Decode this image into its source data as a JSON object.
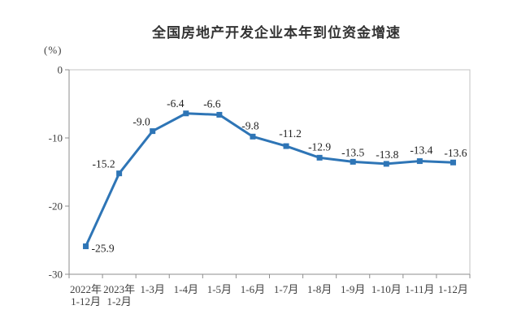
{
  "chart_data": {
    "type": "line",
    "title": "全国房地产开发企业本年到位资金增速",
    "unit_label": "(%)",
    "categories": [
      [
        "2022年",
        "1-12月"
      ],
      [
        "2023年",
        "1-2月"
      ],
      [
        "1-3月"
      ],
      [
        "1-4月"
      ],
      [
        "1-5月"
      ],
      [
        "1-6月"
      ],
      [
        "1-7月"
      ],
      [
        "1-8月"
      ],
      [
        "1-9月"
      ],
      [
        "1-10月"
      ],
      [
        "1-11月"
      ],
      [
        "1-12月"
      ]
    ],
    "values": [
      -25.9,
      -15.2,
      -9.0,
      -6.4,
      -6.6,
      -9.8,
      -11.2,
      -12.9,
      -13.5,
      -13.8,
      -13.4,
      -13.6
    ],
    "data_labels": [
      "-25.9",
      "-15.2",
      "-9.0",
      "-6.4",
      "-6.6",
      "-9.8",
      "-11.2",
      "-12.9",
      "-13.5",
      "-13.8",
      "-13.4",
      "-13.6"
    ],
    "y_ticks": [
      0,
      -10,
      -20,
      -30
    ],
    "y_tick_labels": [
      "0",
      "-10",
      "-20",
      "-30"
    ],
    "ylim": [
      -30,
      0
    ],
    "xlabel": "",
    "ylabel": "(%)",
    "grid": false,
    "legend_position": "none",
    "line_color": "#2E75B6",
    "marker": "square",
    "frame_color": "#C3C3C3",
    "axis_color": "#8E8E8E",
    "label_color": "#1F1F1F",
    "tick_text_color": "#404040"
  }
}
